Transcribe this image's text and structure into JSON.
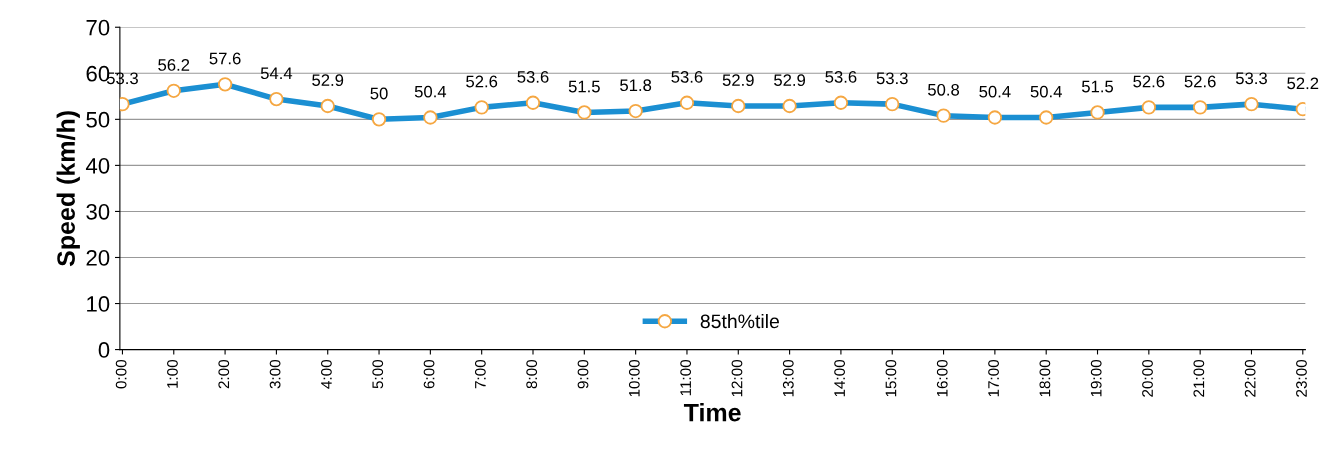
{
  "chart_data": {
    "type": "line",
    "xlabel": "Time",
    "ylabel": "Speed (km/h)",
    "categories": [
      "0:00",
      "1:00",
      "2:00",
      "3:00",
      "4:00",
      "5:00",
      "6:00",
      "7:00",
      "8:00",
      "9:00",
      "10:00",
      "11:00",
      "12:00",
      "13:00",
      "14:00",
      "15:00",
      "16:00",
      "17:00",
      "18:00",
      "19:00",
      "20:00",
      "21:00",
      "22:00",
      "23:00"
    ],
    "series": [
      {
        "name": "85th%tile",
        "color": "#1b8fd2",
        "values": [
          53.3,
          56.2,
          57.6,
          54.4,
          52.9,
          50,
          50.4,
          52.6,
          53.6,
          51.5,
          51.8,
          53.6,
          52.9,
          52.9,
          53.6,
          53.3,
          50.8,
          50.4,
          50.4,
          51.5,
          52.6,
          52.6,
          53.3,
          52.2
        ]
      }
    ],
    "ylim": [
      0,
      70
    ],
    "yticks": [
      0,
      10,
      20,
      30,
      40,
      50,
      60,
      70
    ],
    "grid": "y",
    "legend": "bottom",
    "marker": "circle",
    "line_style": "solid",
    "data_labels": true
  }
}
